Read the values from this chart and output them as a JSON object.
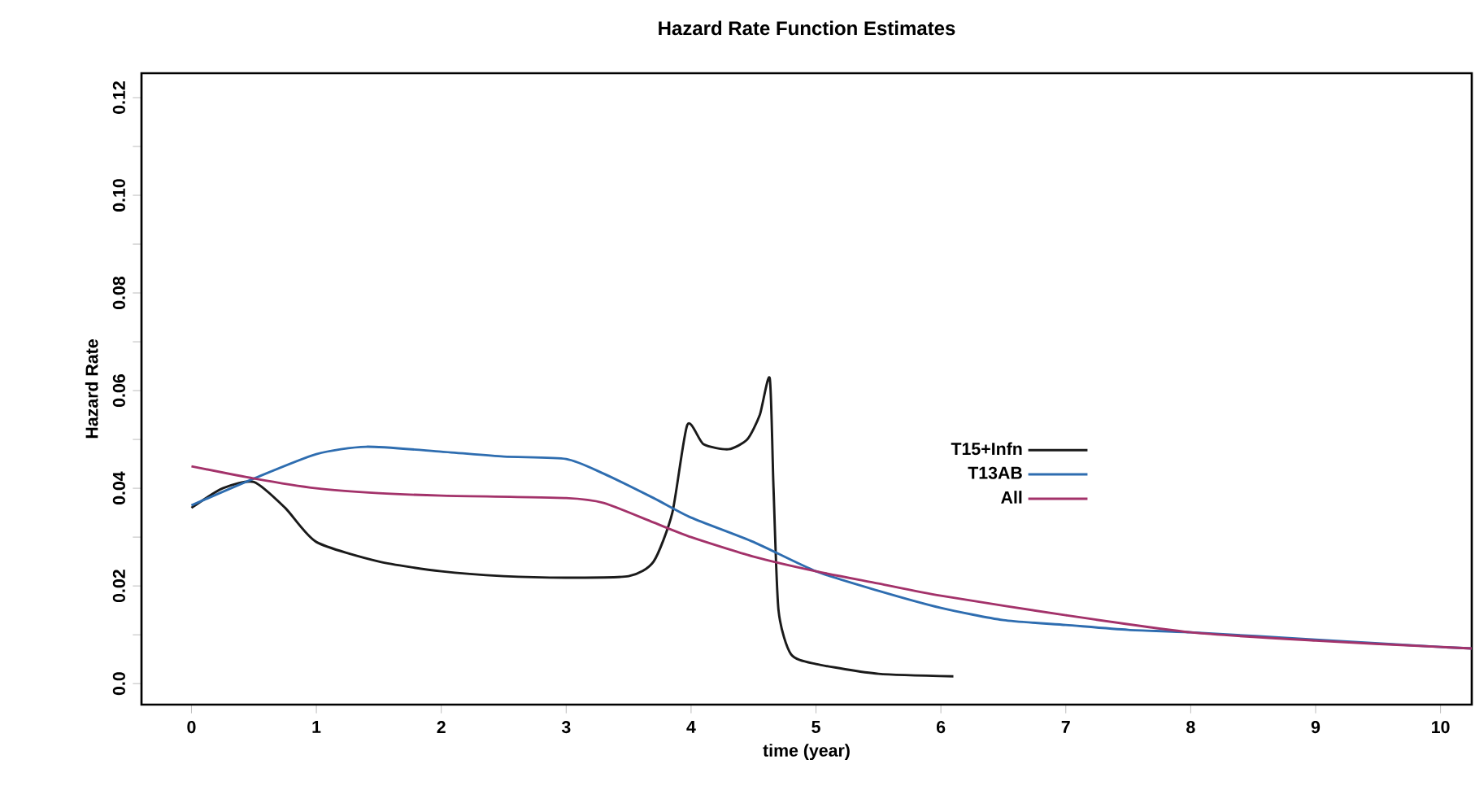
{
  "chart_data": {
    "type": "line",
    "title": "Hazard Rate Function Estimates",
    "xlabel": "time (year)",
    "ylabel": "Hazard Rate",
    "xlim": [
      -0.4,
      10.25
    ],
    "ylim": [
      -0.0043,
      0.125
    ],
    "xticks": [
      0,
      1,
      2,
      3,
      4,
      5,
      6,
      7,
      8,
      9,
      10
    ],
    "yticks": [
      {
        "value": 0,
        "label": "0.0"
      },
      {
        "value": 0.01,
        "label": null
      },
      {
        "value": 0.02,
        "label": "0.02"
      },
      {
        "value": 0.03,
        "label": null
      },
      {
        "value": 0.04,
        "label": "0.04"
      },
      {
        "value": 0.05,
        "label": null
      },
      {
        "value": 0.06,
        "label": "0.06"
      },
      {
        "value": 0.07,
        "label": null
      },
      {
        "value": 0.08,
        "label": "0.08"
      },
      {
        "value": 0.09,
        "label": null
      },
      {
        "value": 0.1,
        "label": "0.10"
      },
      {
        "value": 0.11,
        "label": null
      },
      {
        "value": 0.12,
        "label": "0.12"
      }
    ],
    "legend": "right",
    "grid": false,
    "series": [
      {
        "name": "T15+Infn",
        "color": "#1a1a1a",
        "x": [
          0,
          0.25,
          0.5,
          0.75,
          1,
          1.5,
          2,
          2.5,
          3,
          3.5,
          3.7,
          3.85,
          3.97,
          4.1,
          4.3,
          4.45,
          4.55,
          4.63,
          4.66,
          4.7,
          4.8,
          5,
          5.5,
          6.1
        ],
        "values": [
          0.036,
          0.04,
          0.0413,
          0.036,
          0.029,
          0.025,
          0.023,
          0.022,
          0.0217,
          0.022,
          0.025,
          0.035,
          0.053,
          0.049,
          0.048,
          0.05,
          0.055,
          0.0625,
          0.04,
          0.015,
          0.006,
          0.004,
          0.002,
          0.0015
        ]
      },
      {
        "name": "T13AB",
        "color": "#2e6db0",
        "x": [
          0,
          0.5,
          1,
          1.4,
          2,
          2.5,
          3,
          3.3,
          3.7,
          4,
          4.5,
          5,
          5.5,
          6,
          6.5,
          7,
          7.5,
          8,
          9,
          10,
          10.25
        ],
        "values": [
          0.0365,
          0.042,
          0.047,
          0.0485,
          0.0475,
          0.0465,
          0.046,
          0.043,
          0.038,
          0.034,
          0.029,
          0.023,
          0.019,
          0.0155,
          0.013,
          0.012,
          0.011,
          0.0105,
          0.009,
          0.0075,
          0.0072
        ]
      },
      {
        "name": "All",
        "color": "#a3326a",
        "x": [
          0,
          0.5,
          1,
          1.5,
          2,
          3,
          3.3,
          3.7,
          4,
          4.5,
          5,
          5.5,
          6,
          7,
          8,
          9,
          10,
          10.25
        ],
        "values": [
          0.0445,
          0.042,
          0.04,
          0.039,
          0.0385,
          0.038,
          0.037,
          0.033,
          0.03,
          0.026,
          0.023,
          0.0205,
          0.018,
          0.014,
          0.0105,
          0.0088,
          0.0075,
          0.0072
        ]
      }
    ]
  }
}
